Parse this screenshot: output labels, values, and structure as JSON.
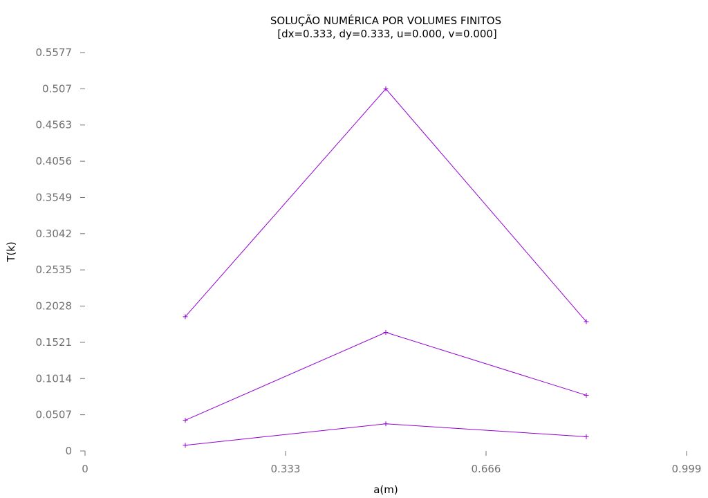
{
  "chart_data": {
    "type": "line",
    "title": "SOLUÇÃO NUMÉRICA POR VOLUMES FINITOS",
    "subtitle": "[dx=0.333, dy=0.333, u=0.000, v=0.000]",
    "xlabel": "a(m)",
    "ylabel": "T(k)",
    "xlim": [
      0,
      0.999
    ],
    "ylim": [
      0,
      0.5577
    ],
    "x_ticks": [
      0,
      0.333,
      0.666,
      0.999
    ],
    "x_tick_labels": [
      "0",
      "0.333",
      "0.666",
      "0.999"
    ],
    "y_ticks": [
      0,
      0.0507,
      0.1014,
      0.1521,
      0.2028,
      0.2535,
      0.3042,
      0.3549,
      0.4056,
      0.4563,
      0.507,
      0.5577
    ],
    "y_tick_labels": [
      "0",
      "0.0507",
      "0.1014",
      "0.1521",
      "0.2028",
      "0.2535",
      "0.3042",
      "0.3549",
      "0.4056",
      "0.4563",
      "0.507",
      "0.5577"
    ],
    "x": [
      0.1665,
      0.4995,
      0.8325
    ],
    "series": [
      {
        "values": [
          0.188,
          0.507,
          0.181
        ],
        "color": "#9400d3"
      },
      {
        "values": [
          0.043,
          0.166,
          0.078
        ],
        "color": "#9400d3"
      },
      {
        "values": [
          0.008,
          0.038,
          0.02
        ],
        "color": "#9400d3"
      }
    ],
    "grid": false,
    "legend": "none",
    "marker": "plus"
  }
}
